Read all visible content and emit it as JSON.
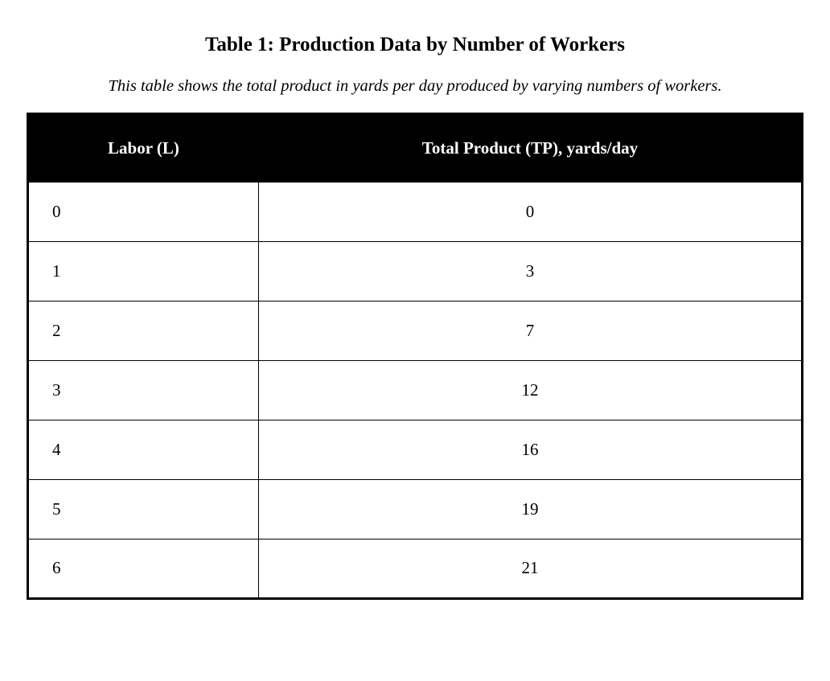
{
  "page": {
    "title": "Table 1: Production Data by Number of Workers",
    "caption": "This table shows the total product in yards per day produced by varying numbers of workers."
  },
  "table": {
    "columns": [
      "Labor (L)",
      "Total Product (TP), yards/day"
    ],
    "rows": [
      [
        "0",
        "0"
      ],
      [
        "1",
        "3"
      ],
      [
        "2",
        "7"
      ],
      [
        "3",
        "12"
      ],
      [
        "4",
        "16"
      ],
      [
        "5",
        "19"
      ],
      [
        "6",
        "21"
      ]
    ]
  },
  "colors": {
    "header_bg": "#000000",
    "header_text": "#ffffff",
    "border": "#000000",
    "page_bg": "#ffffff"
  },
  "chart_data": {
    "type": "table",
    "title": "Table 1: Production Data by Number of Workers",
    "columns": [
      "Labor (L)",
      "Total Product (TP), yards/day"
    ],
    "x": [
      0,
      1,
      2,
      3,
      4,
      5,
      6
    ],
    "series": [
      {
        "name": "Total Product (TP), yards/day",
        "values": [
          0,
          3,
          7,
          12,
          16,
          19,
          21
        ]
      }
    ]
  }
}
